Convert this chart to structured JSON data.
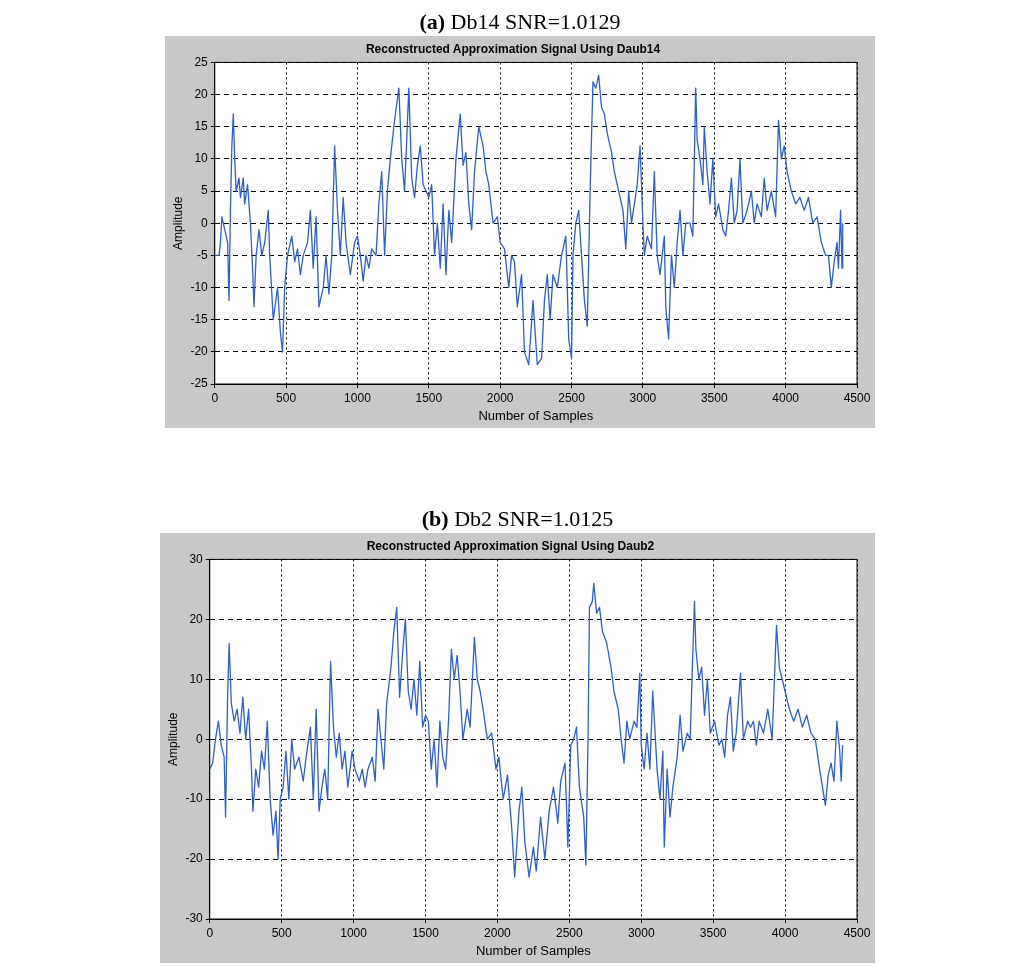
{
  "chart_data": [
    {
      "type": "line",
      "title": "(a) Db14 SNR=1.0129",
      "subtitle": "Reconstructed Approximation Signal Using Daub14",
      "xlabel": "Number of Samples",
      "ylabel": "Amplitude",
      "xlim": [
        0,
        4500
      ],
      "ylim": [
        -25,
        25
      ],
      "xticks": [
        0,
        500,
        1000,
        1500,
        2000,
        2500,
        3000,
        3500,
        4000,
        4500
      ],
      "yticks": [
        -25,
        -20,
        -15,
        -10,
        -5,
        0,
        5,
        10,
        15,
        20,
        25
      ],
      "grid": true,
      "series": [
        {
          "color": "#2f5fc8",
          "x": [
            0,
            30,
            40,
            50,
            70,
            90,
            100,
            110,
            120,
            130,
            140,
            150,
            170,
            180,
            200,
            210,
            230,
            250,
            265,
            275,
            290,
            310,
            330,
            350,
            375,
            385,
            410,
            440,
            460,
            475,
            490,
            510,
            540,
            560,
            580,
            600,
            620,
            650,
            670,
            690,
            710,
            730,
            760,
            780,
            800,
            820,
            840,
            860,
            880,
            900,
            920,
            950,
            980,
            1000,
            1020,
            1040,
            1060,
            1080,
            1100,
            1130,
            1150,
            1170,
            1190,
            1210,
            1230,
            1260,
            1290,
            1310,
            1330,
            1360,
            1380,
            1400,
            1420,
            1440,
            1460,
            1480,
            1500,
            1520,
            1540,
            1560,
            1580,
            1600,
            1620,
            1640,
            1660,
            1690,
            1720,
            1740,
            1760,
            1780,
            1800,
            1820,
            1850,
            1880,
            1900,
            1920,
            1950,
            1980,
            2000,
            2030,
            2060,
            2080,
            2100,
            2120,
            2150,
            2170,
            2200,
            2230,
            2260,
            2290,
            2310,
            2330,
            2350,
            2370,
            2400,
            2430,
            2460,
            2480,
            2500,
            2510,
            2530,
            2550,
            2570,
            2590,
            2610,
            2630,
            2650,
            2670,
            2690,
            2710,
            2730,
            2750,
            2780,
            2800,
            2830,
            2860,
            2880,
            2900,
            2920,
            2940,
            2960,
            2980,
            3000,
            3010,
            3030,
            3060,
            3080,
            3100,
            3120,
            3150,
            3160,
            3180,
            3200,
            3220,
            3240,
            3260,
            3280,
            3300,
            3330,
            3350,
            3370,
            3380,
            3400,
            3420,
            3430,
            3450,
            3470,
            3490,
            3510,
            3530,
            3560,
            3580,
            3600,
            3620,
            3640,
            3660,
            3680,
            3700,
            3730,
            3760,
            3780,
            3800,
            3830,
            3850,
            3870,
            3900,
            3930,
            3950,
            3970,
            3990,
            4010,
            4040,
            4070,
            4100,
            4130,
            4160,
            4190,
            4220,
            4250,
            4280,
            4300,
            4320,
            4340,
            4360,
            4370,
            4385,
            4395,
            4400
          ],
          "values": [
            -5,
            -5,
            -3,
            1,
            -1,
            -3,
            -12,
            2,
            12,
            17,
            10,
            5,
            7,
            4,
            7,
            3,
            6,
            0,
            -7,
            -13,
            -5,
            -1,
            -5,
            -3,
            2,
            -5,
            -15,
            -10,
            -17,
            -20,
            -10,
            -5,
            -2,
            -6,
            -4,
            -8,
            -5,
            -3,
            2,
            -7,
            1,
            -13,
            -10,
            -5,
            -11,
            -5,
            12,
            2,
            -5,
            4,
            -3,
            -8,
            -3,
            -2,
            -5,
            -9,
            -5,
            -7,
            -4,
            -5,
            3,
            8,
            -5,
            5,
            10,
            16,
            21,
            10,
            5,
            21,
            7,
            4,
            9,
            12,
            6,
            5,
            4,
            6,
            -5,
            0,
            -7,
            3,
            -8,
            2,
            -3,
            10,
            17,
            9,
            11,
            3,
            -1,
            8,
            15,
            12,
            8,
            6,
            0,
            1,
            -3,
            -4,
            -10,
            -5,
            -6,
            -13,
            -8,
            -20,
            -22,
            -12,
            -22,
            -21,
            -12,
            -8,
            -15,
            -8,
            -10,
            -5,
            -2,
            -18,
            -21,
            -5,
            0,
            2,
            -5,
            -12,
            -16,
            5,
            22,
            21,
            23,
            18,
            17,
            14,
            11,
            8,
            5,
            2,
            -4,
            5,
            0,
            3,
            6,
            12,
            0,
            -5,
            -2,
            -4,
            8,
            -5,
            -8,
            -2,
            -13,
            -18,
            -5,
            -10,
            -3,
            2,
            -5,
            0,
            0,
            -2,
            21,
            13,
            10,
            6,
            15,
            8,
            3,
            10,
            1,
            3,
            -1,
            -2,
            2,
            7,
            0,
            2,
            10,
            0,
            2,
            5,
            0,
            3,
            1,
            7,
            2,
            5,
            1,
            16,
            10,
            12,
            8,
            5,
            3,
            4,
            2,
            4,
            0,
            1,
            -3,
            -5,
            -5,
            -10,
            -6,
            -3,
            -7,
            2,
            -7,
            0
          ]
        }
      ]
    },
    {
      "type": "line",
      "title": "(b) Db2 SNR=1.0125",
      "subtitle": "Reconstructed Approximation Signal Using Daub2",
      "xlabel": "Number of Samples",
      "ylabel": "Amplitude",
      "xlim": [
        0,
        4500
      ],
      "ylim": [
        -30,
        30
      ],
      "xticks": [
        0,
        500,
        1000,
        1500,
        2000,
        2500,
        3000,
        3500,
        4000,
        4500
      ],
      "yticks": [
        -30,
        -20,
        -10,
        0,
        10,
        20,
        30
      ],
      "grid": true,
      "series": [
        {
          "color": "#2f5fc8",
          "x": [
            0,
            20,
            40,
            60,
            80,
            100,
            110,
            125,
            135,
            150,
            170,
            190,
            210,
            230,
            250,
            270,
            290,
            300,
            320,
            340,
            360,
            380,
            400,
            420,
            440,
            460,
            475,
            490,
            510,
            530,
            550,
            570,
            590,
            620,
            650,
            670,
            700,
            720,
            740,
            760,
            780,
            800,
            820,
            840,
            860,
            880,
            900,
            920,
            940,
            960,
            990,
            1010,
            1040,
            1060,
            1080,
            1100,
            1130,
            1150,
            1170,
            1190,
            1210,
            1230,
            1260,
            1280,
            1300,
            1320,
            1340,
            1360,
            1380,
            1400,
            1420,
            1440,
            1460,
            1480,
            1500,
            1520,
            1540,
            1560,
            1580,
            1600,
            1620,
            1640,
            1660,
            1680,
            1700,
            1720,
            1740,
            1760,
            1790,
            1810,
            1840,
            1860,
            1880,
            1900,
            1930,
            1960,
            1990,
            2010,
            2040,
            2070,
            2100,
            2120,
            2150,
            2170,
            2190,
            2220,
            2250,
            2270,
            2300,
            2330,
            2360,
            2390,
            2420,
            2440,
            2470,
            2490,
            2510,
            2530,
            2550,
            2570,
            2600,
            2615,
            2630,
            2640,
            2660,
            2670,
            2690,
            2710,
            2730,
            2760,
            2790,
            2810,
            2840,
            2860,
            2880,
            2900,
            2920,
            2950,
            2970,
            2990,
            3000,
            3020,
            3040,
            3060,
            3080,
            3110,
            3130,
            3150,
            3160,
            3180,
            3200,
            3220,
            3250,
            3270,
            3290,
            3320,
            3340,
            3370,
            3380,
            3400,
            3420,
            3440,
            3460,
            3480,
            3510,
            3540,
            3560,
            3580,
            3600,
            3620,
            3640,
            3660,
            3690,
            3710,
            3740,
            3760,
            3780,
            3800,
            3820,
            3850,
            3880,
            3910,
            3940,
            3960,
            3980,
            4000,
            4030,
            4060,
            4090,
            4120,
            4150,
            4180,
            4210,
            4240,
            4260,
            4280,
            4300,
            4320,
            4340,
            4360,
            4380,
            4390,
            4400
          ],
          "values": [
            -5,
            -4,
            0,
            3,
            -1,
            -3,
            -13,
            8,
            16,
            6,
            3,
            5,
            1,
            7,
            0,
            5,
            -5,
            -12,
            -5,
            -8,
            -2,
            -5,
            3,
            -10,
            -16,
            -12,
            -20,
            -10,
            -8,
            -2,
            -10,
            0,
            -5,
            -3,
            -7,
            -3,
            2,
            -10,
            5,
            -12,
            -8,
            -5,
            -10,
            13,
            2,
            -3,
            1,
            -5,
            -2,
            -8,
            -2,
            -5,
            -7,
            -5,
            -8,
            -5,
            -3,
            -7,
            5,
            0,
            -5,
            6,
            12,
            18,
            22,
            7,
            14,
            20,
            8,
            5,
            10,
            4,
            13,
            2,
            4,
            3,
            -5,
            0,
            -8,
            3,
            -3,
            -5,
            3,
            15,
            10,
            14,
            8,
            0,
            5,
            2,
            17,
            10,
            8,
            5,
            0,
            1,
            -5,
            -3,
            -10,
            -6,
            -15,
            -23,
            -12,
            -8,
            -17,
            -23,
            -18,
            -22,
            -13,
            -20,
            -12,
            -8,
            -14,
            -7,
            -4,
            -18,
            -1,
            0,
            2,
            -8,
            -13,
            -21,
            0,
            22,
            23,
            26,
            21,
            22,
            18,
            16,
            12,
            8,
            5,
            0,
            -4,
            3,
            0,
            3,
            2,
            11,
            -1,
            -5,
            1,
            -5,
            8,
            -5,
            -10,
            -2,
            -18,
            -5,
            -13,
            -8,
            -3,
            4,
            -2,
            1,
            0,
            23,
            15,
            10,
            12,
            4,
            10,
            1,
            3,
            -1,
            0,
            -3,
            4,
            7,
            -2,
            1,
            11,
            0,
            3,
            2,
            3,
            -1,
            3,
            1,
            5,
            0,
            19,
            12,
            10,
            8,
            5,
            3,
            5,
            2,
            4,
            1,
            0,
            -5,
            -8,
            -11,
            -6,
            -4,
            -7,
            3,
            -2,
            -7,
            -1
          ]
        }
      ]
    }
  ]
}
